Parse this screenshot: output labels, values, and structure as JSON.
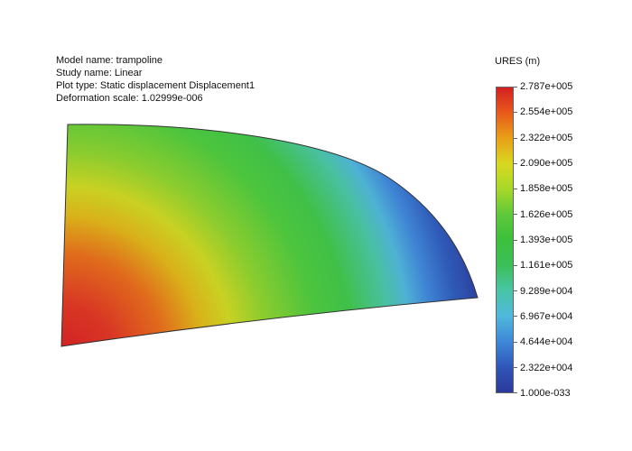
{
  "info": {
    "model_name": "Model name: trampoline",
    "study_name": "Study name: Linear",
    "plot_type": "Plot type: Static displacement Displacement1",
    "deformation_scale": "Deformation scale: 1.02999e-006"
  },
  "legend": {
    "title": "URES (m)",
    "labels": [
      "2.787e+005",
      "2.554e+005",
      "2.322e+005",
      "2.090e+005",
      "1.858e+005",
      "1.626e+005",
      "1.393e+005",
      "1.161e+005",
      "9.289e+004",
      "6.967e+004",
      "4.644e+004",
      "2.322e+004",
      "1.000e-033"
    ],
    "colors": [
      "#d42020",
      "#e85a1c",
      "#e9a018",
      "#d8d820",
      "#a8d828",
      "#5ec83a",
      "#3cc03c",
      "#3cbf58",
      "#48c4a8",
      "#50b8dc",
      "#3e88d8",
      "#2f56b8",
      "#2b3a9a"
    ]
  }
}
